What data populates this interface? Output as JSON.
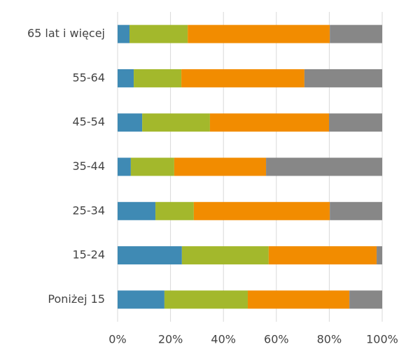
{
  "chart_data": {
    "type": "bar",
    "orientation": "horizontal",
    "stacked": true,
    "categories": [
      "65 lat i więcej",
      "55-64",
      "45-54",
      "35-44",
      "25-34",
      "15-24",
      "Poniżej 15"
    ],
    "series": [
      {
        "color": "#3f8ab4",
        "values": [
          4.5,
          6.1,
          9.3,
          5,
          14.3,
          24.3,
          17.7
        ]
      },
      {
        "color": "#a3b82c",
        "values": [
          22,
          18,
          25.6,
          16.4,
          14.5,
          32.8,
          31.5
        ]
      },
      {
        "color": "#f28c00",
        "values": [
          53.7,
          46.5,
          45,
          34.7,
          51.4,
          40.8,
          38.4
        ]
      },
      {
        "color": "#878787",
        "values": [
          19.8,
          29.4,
          20.1,
          43.9,
          19.8,
          2.1,
          12.4
        ]
      }
    ],
    "xlim": [
      0,
      100
    ],
    "xticks": [
      {
        "value": 0,
        "label": "0%"
      },
      {
        "value": 20,
        "label": "20%"
      },
      {
        "value": 40,
        "label": "40%"
      },
      {
        "value": 60,
        "label": "60%"
      },
      {
        "value": 80,
        "label": "80%"
      },
      {
        "value": 100,
        "label": "100%"
      }
    ],
    "grid": true
  }
}
